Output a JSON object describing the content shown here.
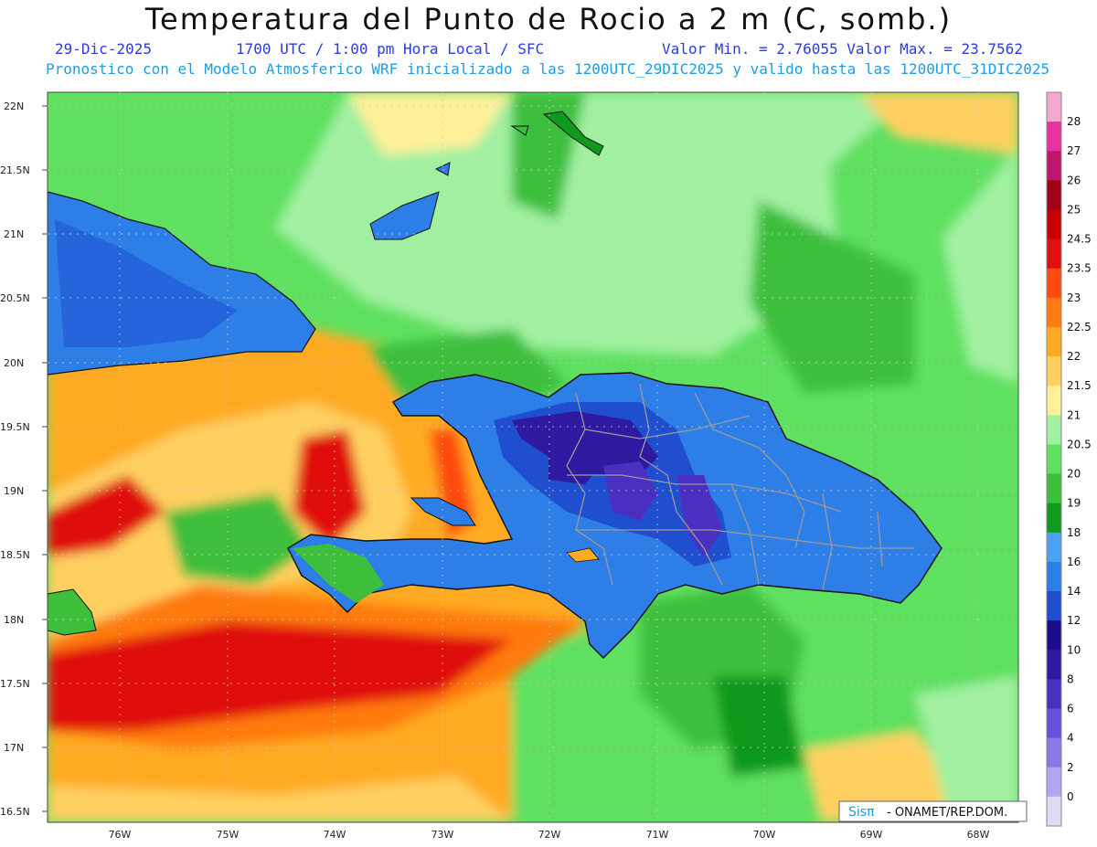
{
  "header": {
    "title": "Temperatura del Punto de Rocio a 2 m (C, somb.)",
    "date": "29-Dic-2025",
    "time": "1700 UTC / 1:00 pm Hora Local / SFC",
    "minmax": "Valor Min. = 2.76055  Valor Max. = 23.7562",
    "model_info": "Pronostico con el Modelo Atmosferico WRF inicializado a las 1200UTC_29DIC2025 y valido hasta las  1200UTC_31DIC2025"
  },
  "axes": {
    "lat_labels": [
      "22N",
      "21.5N",
      "21N",
      "20.5N",
      "20N",
      "19.5N",
      "19N",
      "18.5N",
      "18N",
      "17.5N",
      "17N",
      "16.5N"
    ],
    "lon_labels": [
      "76W",
      "75W",
      "74W",
      "73W",
      "72W",
      "71W",
      "70W",
      "69W",
      "68W"
    ]
  },
  "legend": {
    "levels": [
      "0",
      "2",
      "4",
      "6",
      "8",
      "10",
      "12",
      "14",
      "16",
      "18",
      "19",
      "20",
      "20.5",
      "21",
      "21.5",
      "22",
      "22.5",
      "23",
      "23.5",
      "24.5",
      "25",
      "26",
      "27",
      "28"
    ],
    "colors": [
      "#dcdcf4",
      "#b4a5f0",
      "#8c78e6",
      "#6a4fd8",
      "#4b2fc0",
      "#2d1aa0",
      "#1c0d8c",
      "#1f4fcf",
      "#2e7ee8",
      "#4aa3f2",
      "#0f9a1e",
      "#3dbf3c",
      "#5fe060",
      "#a0f0a0",
      "#fff09a",
      "#ffd060",
      "#ffaa20",
      "#ff7a10",
      "#ff4a10",
      "#e01010",
      "#c80000",
      "#a00018",
      "#c0156e",
      "#e830a0",
      "#f4a8d0"
    ]
  },
  "credit": {
    "brand": "Sisπ",
    "org": " - ONAMET/REP.DOM."
  },
  "colors": {
    "ocean_green": "#5fe060",
    "land_blue": "#2e7ee8",
    "hot_red": "#e01010",
    "orange": "#ffaa20"
  }
}
